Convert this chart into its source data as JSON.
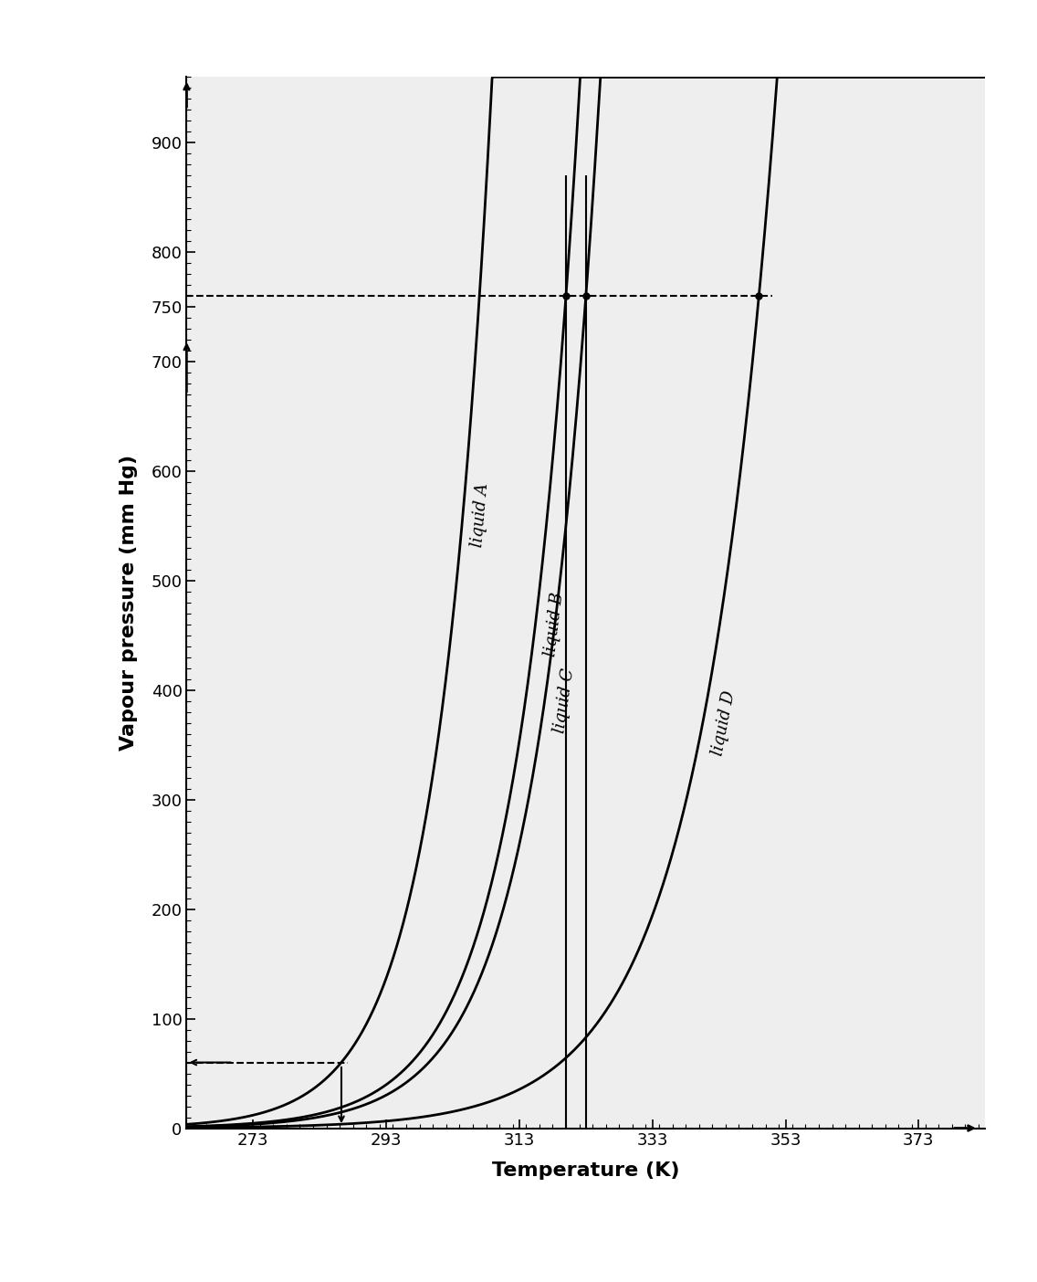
{
  "title": "",
  "xlabel": "Temperature (K)",
  "ylabel": "Vapour pressure (mm Hg)",
  "xlim": [
    263,
    383
  ],
  "ylim": [
    0,
    960
  ],
  "xticks": [
    273,
    293,
    313,
    333,
    353,
    373
  ],
  "yticks": [
    0,
    100,
    200,
    300,
    400,
    500,
    600,
    700,
    750,
    800,
    900
  ],
  "plot_bg": "#eeeeee",
  "fig_bg": "#ffffff",
  "liquid_labels": [
    "liquid A",
    "liquid B",
    "liquid C",
    "liquid D"
  ],
  "atm_pressure": 760,
  "low_pressure": 60,
  "boiling_A_760": 307,
  "boiling_B_760": 320,
  "boiling_C_760": 323,
  "boiling_D_760": 349,
  "boiling_A_60": 293,
  "curve_A": {
    "T_ref": 263,
    "P_ref": 0.8,
    "alpha": 0.0495
  },
  "curve_B": {
    "T_ref": 263,
    "P_ref": 0.4,
    "alpha": 0.0455
  },
  "curve_C": {
    "T_ref": 263,
    "P_ref": 0.3,
    "alpha": 0.0445
  },
  "curve_D": {
    "T_ref": 263,
    "P_ref": 0.15,
    "alpha": 0.0405
  }
}
